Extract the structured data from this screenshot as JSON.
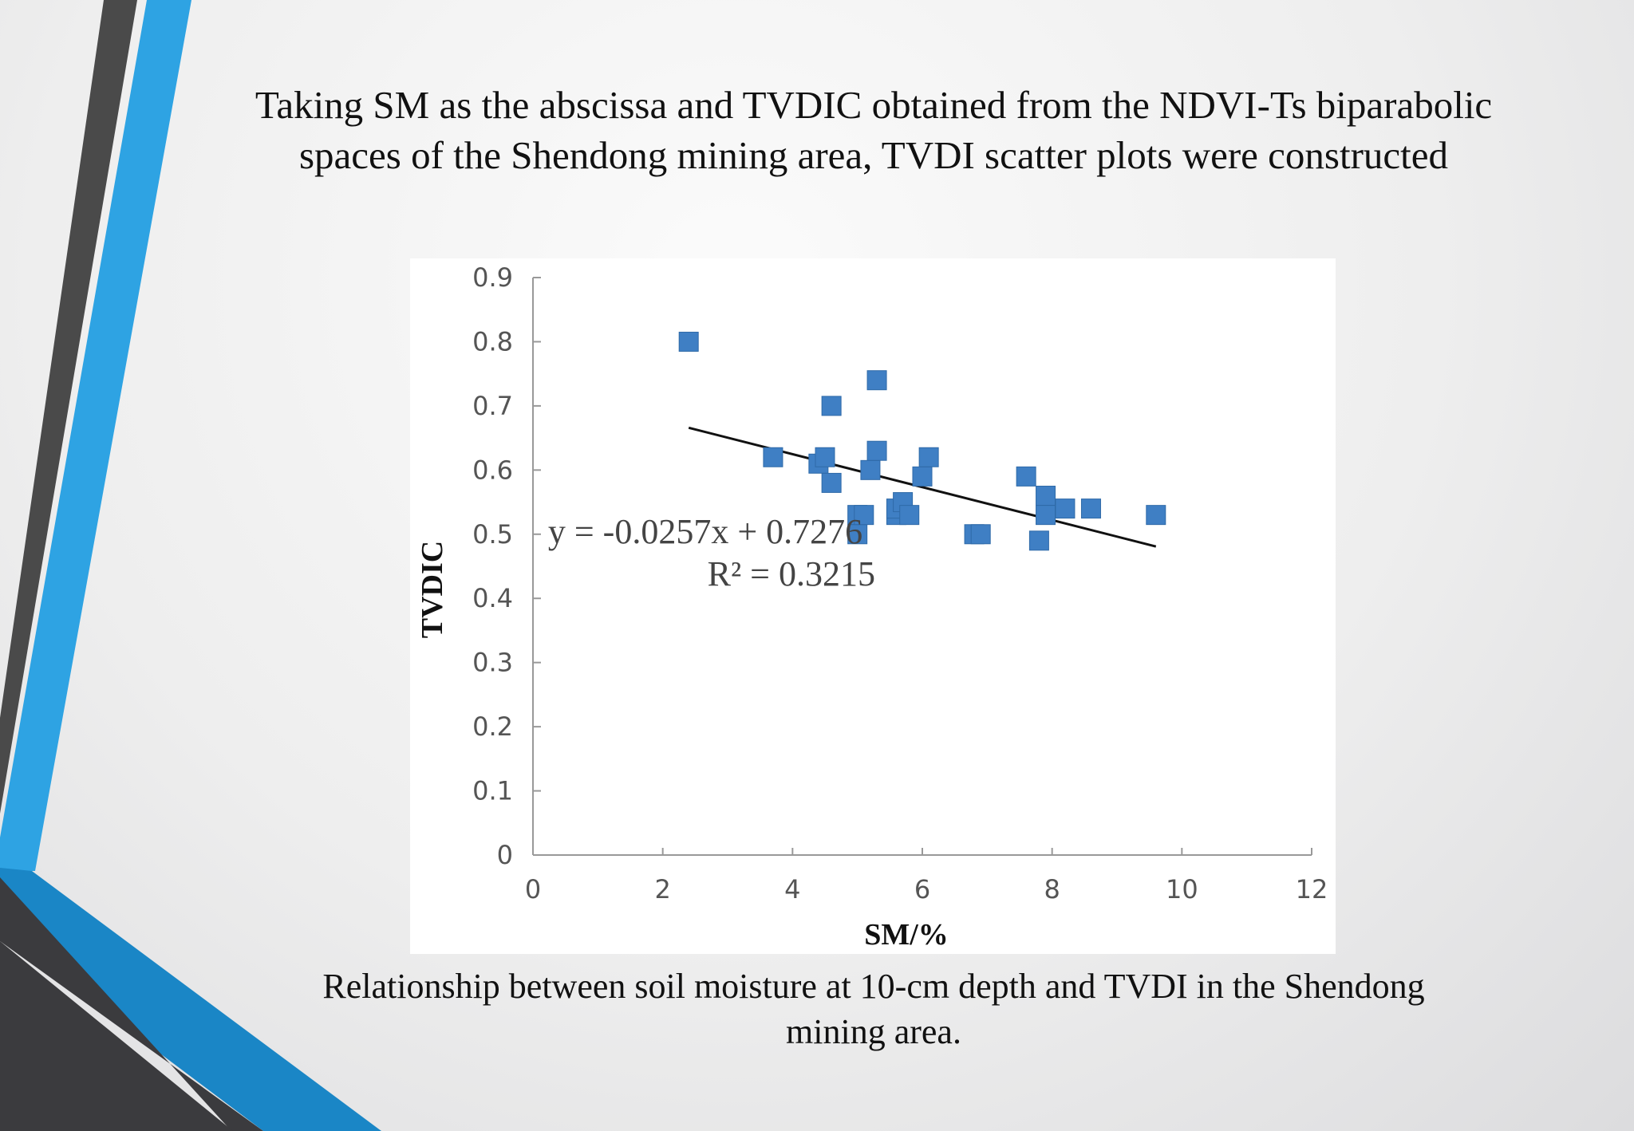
{
  "slide": {
    "title": "Taking SM as the abscissa and TVDIC obtained from the NDVI-Ts biparabolic spaces of the Shendong mining area, TVDI scatter plots were constructed",
    "caption": "Relationship between soil moisture at 10-cm depth and TVDI in the Shendong mining area.",
    "accent_colors": {
      "blue": "#2ea3e3",
      "dark_blue": "#1a86c6",
      "dark_gray": "#4a4a4a",
      "charcoal": "#3b3b3e"
    }
  },
  "chart_data": {
    "type": "scatter",
    "title": "",
    "xlabel": "SM/%",
    "ylabel": "TVDIC",
    "xlim": [
      0,
      12
    ],
    "ylim": [
      0,
      0.9
    ],
    "x_ticks": [
      "0",
      "2",
      "4",
      "6",
      "8",
      "10",
      "12"
    ],
    "y_ticks": [
      "0",
      "0.1",
      "0.2",
      "0.3",
      "0.4",
      "0.5",
      "0.6",
      "0.7",
      "0.8",
      "0.9"
    ],
    "marker_color": "#3f7fc4",
    "line_color": "#111111",
    "grid": false,
    "points": [
      {
        "x": 2.4,
        "y": 0.8
      },
      {
        "x": 3.7,
        "y": 0.62
      },
      {
        "x": 4.4,
        "y": 0.61
      },
      {
        "x": 4.5,
        "y": 0.62
      },
      {
        "x": 4.6,
        "y": 0.58
      },
      {
        "x": 4.6,
        "y": 0.7
      },
      {
        "x": 5.0,
        "y": 0.53
      },
      {
        "x": 5.0,
        "y": 0.5
      },
      {
        "x": 5.1,
        "y": 0.53
      },
      {
        "x": 5.2,
        "y": 0.6
      },
      {
        "x": 5.3,
        "y": 0.63
      },
      {
        "x": 5.3,
        "y": 0.74
      },
      {
        "x": 5.6,
        "y": 0.53
      },
      {
        "x": 5.6,
        "y": 0.54
      },
      {
        "x": 5.7,
        "y": 0.55
      },
      {
        "x": 5.8,
        "y": 0.53
      },
      {
        "x": 6.0,
        "y": 0.59
      },
      {
        "x": 6.1,
        "y": 0.62
      },
      {
        "x": 6.8,
        "y": 0.5
      },
      {
        "x": 6.9,
        "y": 0.5
      },
      {
        "x": 7.6,
        "y": 0.59
      },
      {
        "x": 7.8,
        "y": 0.49
      },
      {
        "x": 7.9,
        "y": 0.56
      },
      {
        "x": 7.9,
        "y": 0.53
      },
      {
        "x": 8.2,
        "y": 0.54
      },
      {
        "x": 8.6,
        "y": 0.54
      },
      {
        "x": 9.6,
        "y": 0.53
      }
    ],
    "trendline": {
      "slope": -0.0257,
      "intercept": 0.7276,
      "x_start": 2.4,
      "x_end": 9.6
    },
    "annotations": [
      "y = -0.0257x + 0.7276",
      "R² = 0.3215"
    ]
  }
}
